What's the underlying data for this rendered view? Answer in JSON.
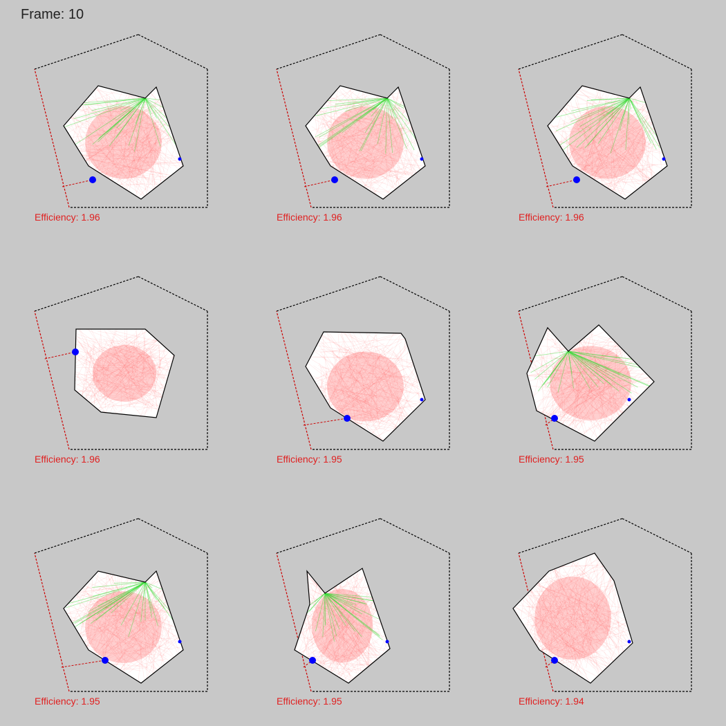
{
  "header": {
    "frame_label": "Frame: 10"
  },
  "colors": {
    "background": "#c8c8c8",
    "boundary_dashed": "#000000",
    "boundary_red_edge": "#cc0000",
    "shape_outline": "#000000",
    "fill_paths": "#ff4040",
    "highlight_paths": "#33dd33",
    "marker": "#0000ff",
    "efficiency_text": "#e02020"
  },
  "panels": [
    {
      "efficiency": "Efficiency: 1.96",
      "polygon": [
        [
          92,
          182
        ],
        [
          142,
          124
        ],
        [
          210,
          142
        ],
        [
          226,
          126
        ],
        [
          265,
          240
        ],
        [
          204,
          288
        ],
        [
          128,
          240
        ]
      ],
      "apex": [
        210,
        142
      ],
      "big_marker": [
        134,
        260
      ],
      "small_marker": [
        260,
        230
      ]
    },
    {
      "efficiency": "Efficiency: 1.96",
      "polygon": [
        [
          92,
          182
        ],
        [
          142,
          124
        ],
        [
          210,
          142
        ],
        [
          226,
          126
        ],
        [
          265,
          240
        ],
        [
          204,
          288
        ],
        [
          128,
          240
        ]
      ],
      "apex": [
        210,
        142
      ],
      "big_marker": [
        134,
        260
      ],
      "small_marker": [
        260,
        230
      ]
    },
    {
      "efficiency": "Efficiency: 1.96",
      "polygon": [
        [
          92,
          182
        ],
        [
          142,
          124
        ],
        [
          210,
          142
        ],
        [
          226,
          126
        ],
        [
          265,
          240
        ],
        [
          204,
          288
        ],
        [
          128,
          240
        ]
      ],
      "apex": [
        210,
        142
      ],
      "big_marker": [
        134,
        260
      ],
      "small_marker": [
        260,
        230
      ]
    },
    {
      "efficiency": "Efficiency: 1.96",
      "polygon": [
        [
          110,
          476
        ],
        [
          210,
          476
        ],
        [
          252,
          514
        ],
        [
          226,
          604
        ],
        [
          146,
          596
        ],
        [
          108,
          564
        ]
      ],
      "apex": null,
      "big_marker": [
        109,
        509
      ],
      "small_marker": null
    },
    {
      "efficiency": "Efficiency: 1.95",
      "polygon": [
        [
          92,
          530
        ],
        [
          118,
          480
        ],
        [
          230,
          482
        ],
        [
          236,
          490
        ],
        [
          265,
          578
        ],
        [
          204,
          638
        ],
        [
          128,
          590
        ]
      ],
      "apex": null,
      "big_marker": [
        152,
        605
      ],
      "small_marker": [
        260,
        578
      ]
    },
    {
      "efficiency": "Efficiency: 1.95",
      "polygon": [
        [
          62,
          540
        ],
        [
          92,
          474
        ],
        [
          122,
          508
        ],
        [
          166,
          470
        ],
        [
          246,
          552
        ],
        [
          160,
          638
        ],
        [
          76,
          594
        ]
      ],
      "apex": [
        122,
        508
      ],
      "big_marker": [
        102,
        605
      ],
      "small_marker": [
        210,
        578
      ]
    },
    {
      "efficiency": "Efficiency: 1.95",
      "polygon": [
        [
          92,
          880
        ],
        [
          142,
          826
        ],
        [
          210,
          842
        ],
        [
          226,
          826
        ],
        [
          265,
          940
        ],
        [
          204,
          988
        ],
        [
          128,
          940
        ]
      ],
      "apex": [
        210,
        842
      ],
      "big_marker": [
        152,
        955
      ],
      "small_marker": [
        260,
        928
      ]
    },
    {
      "efficiency": "Efficiency: 1.95",
      "polygon": [
        [
          94,
          826
        ],
        [
          98,
          874
        ],
        [
          76,
          940
        ],
        [
          102,
          956
        ],
        [
          154,
          988
        ],
        [
          214,
          938
        ],
        [
          174,
          822
        ],
        [
          120,
          858
        ]
      ],
      "apex": [
        120,
        858
      ],
      "big_marker": [
        102,
        955
      ],
      "small_marker": [
        210,
        928
      ]
    },
    {
      "efficiency": "Efficiency: 1.94",
      "polygon": [
        [
          42,
          880
        ],
        [
          94,
          826
        ],
        [
          160,
          800
        ],
        [
          188,
          840
        ],
        [
          215,
          930
        ],
        [
          154,
          988
        ],
        [
          80,
          940
        ]
      ],
      "apex": null,
      "big_marker": [
        102,
        955
      ],
      "small_marker": [
        210,
        928
      ]
    }
  ]
}
